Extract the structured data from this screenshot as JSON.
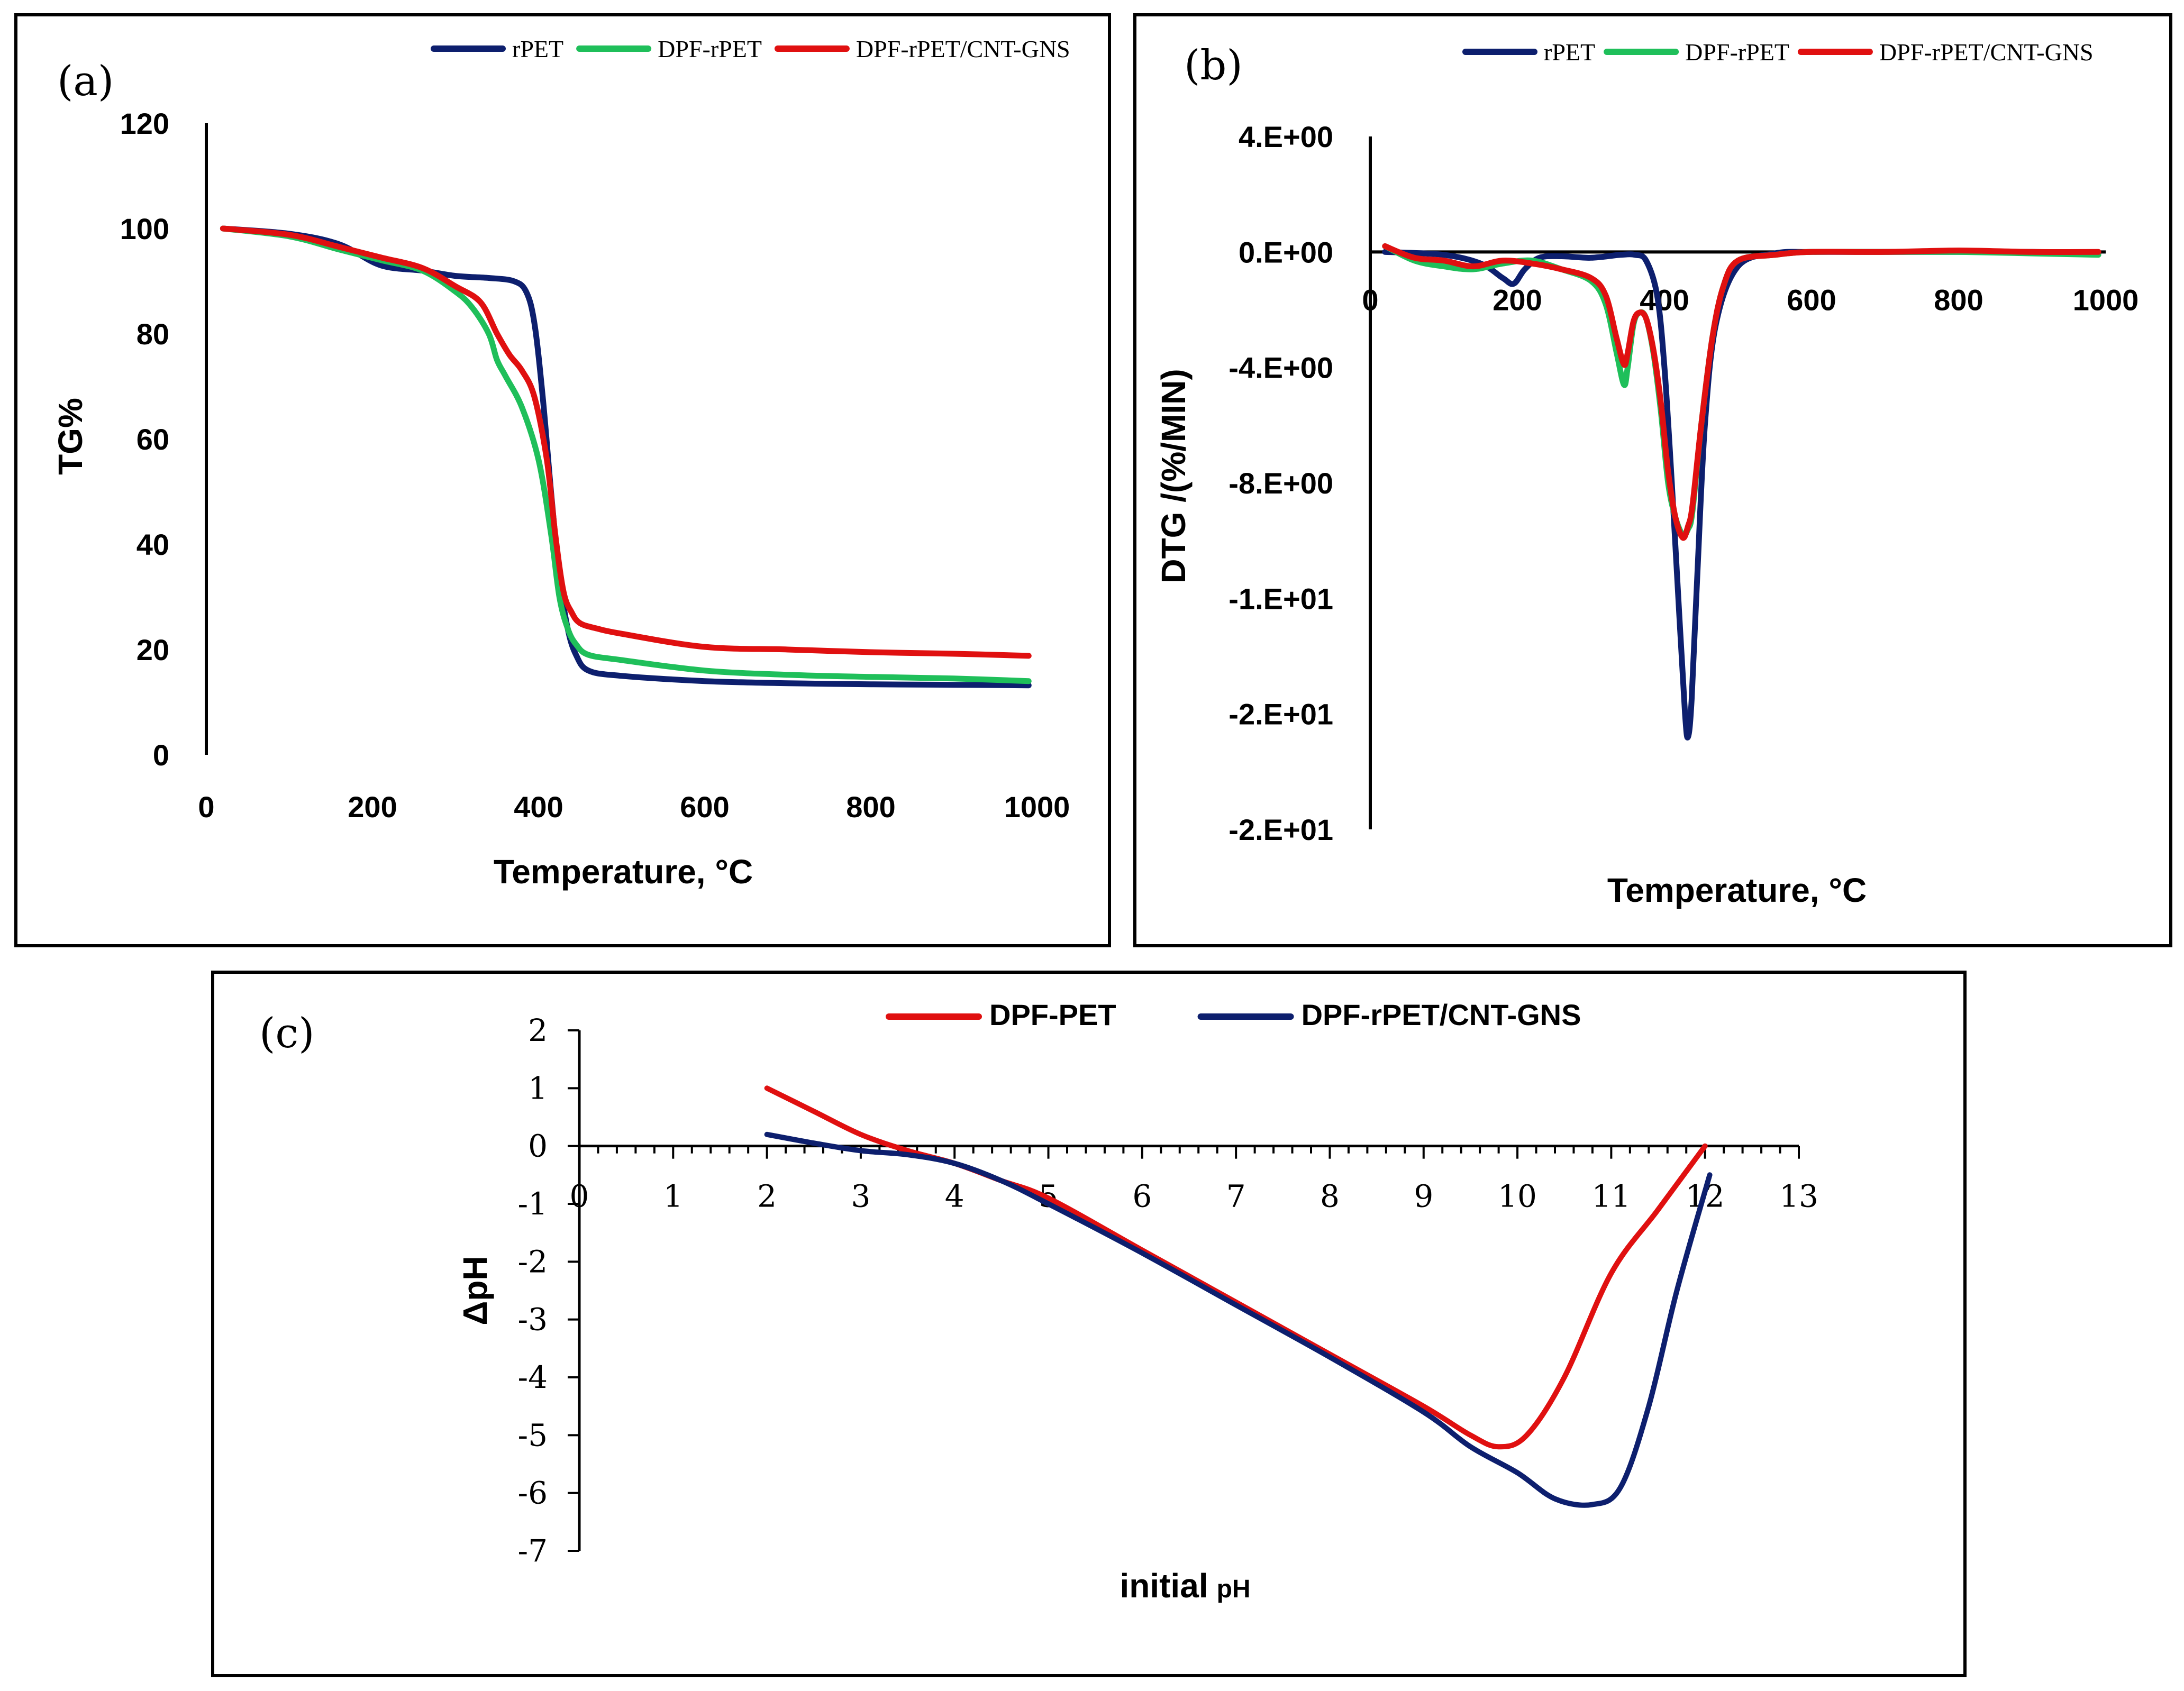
{
  "chart_data": [
    {
      "panel": "(a)",
      "type": "line",
      "xlabel": "Temperature, °C",
      "ylabel": "TG%",
      "xlim": [
        0,
        1000
      ],
      "ylim": [
        0,
        120
      ],
      "xticks": [
        0,
        200,
        400,
        600,
        800,
        1000
      ],
      "yticks": [
        0,
        20,
        40,
        60,
        80,
        100,
        120
      ],
      "legend_position": "top-right",
      "series": [
        {
          "name": "rPET",
          "color": "#0d1f6e",
          "x": [
            20,
            100,
            160,
            210,
            260,
            300,
            340,
            370,
            385,
            395,
            405,
            415,
            425,
            435,
            445,
            460,
            500,
            600,
            700,
            800,
            900,
            990
          ],
          "y": [
            100,
            99,
            97,
            93,
            92,
            91,
            90.6,
            90,
            88,
            82,
            68,
            50,
            34,
            24,
            19,
            16,
            15,
            14,
            13.6,
            13.4,
            13.3,
            13.2
          ]
        },
        {
          "name": "DPF-rPET",
          "color": "#1fbf5a",
          "x": [
            20,
            100,
            160,
            210,
            260,
            300,
            320,
            340,
            350,
            360,
            380,
            400,
            415,
            425,
            435,
            445,
            460,
            500,
            600,
            700,
            800,
            900,
            990
          ],
          "y": [
            100,
            98.5,
            96,
            94,
            92,
            88,
            85,
            80,
            75,
            72,
            66,
            56,
            42,
            30,
            24,
            21,
            19,
            18,
            16,
            15.2,
            14.8,
            14.5,
            14
          ]
        },
        {
          "name": "DPF-rPET/CNT-GNS",
          "color": "#e01010",
          "x": [
            20,
            100,
            160,
            210,
            260,
            300,
            330,
            350,
            365,
            380,
            395,
            410,
            420,
            430,
            440,
            450,
            470,
            500,
            600,
            700,
            800,
            900,
            990
          ],
          "y": [
            100,
            98.8,
            96.5,
            94.5,
            92.5,
            89,
            86,
            80,
            76,
            73,
            68,
            56,
            42,
            31,
            27,
            25,
            24,
            23,
            20.5,
            20,
            19.5,
            19.2,
            18.8
          ]
        }
      ]
    },
    {
      "panel": "(b)",
      "type": "line",
      "xlabel": "Temperature, °C",
      "ylabel": "DTG /(%/MIN)",
      "xlim": [
        0,
        1000
      ],
      "ylim": [
        -20,
        4
      ],
      "xticks": [
        0,
        200,
        400,
        600,
        800,
        1000
      ],
      "xtick_labels": [
        "0",
        "200",
        "400",
        "600",
        "800",
        "1000"
      ],
      "yticks": [
        4,
        0,
        -4,
        -8,
        -12,
        -16,
        -20
      ],
      "ytick_labels": [
        "4.E+00",
        "0.E+00",
        "-4.E+00",
        "-8.E+00",
        "-1.E+01",
        "-2.E+01",
        "-2.E+01"
      ],
      "legend_position": "top-right",
      "series": [
        {
          "name": "rPET",
          "color": "#0d1f6e",
          "x": [
            20,
            100,
            150,
            180,
            195,
            210,
            230,
            260,
            300,
            340,
            360,
            375,
            390,
            400,
            410,
            420,
            428,
            432,
            437,
            445,
            455,
            470,
            500,
            550,
            600,
            700,
            800,
            900,
            990
          ],
          "y": [
            0,
            -0.1,
            -0.4,
            -0.9,
            -1.1,
            -0.6,
            -0.2,
            -0.15,
            -0.2,
            -0.1,
            -0.1,
            -0.3,
            -1.5,
            -4,
            -8,
            -12.5,
            -16,
            -16.8,
            -15.5,
            -11,
            -6,
            -2.5,
            -0.5,
            -0.05,
            0,
            0,
            0,
            0,
            -0.05
          ]
        },
        {
          "name": "DPF-rPET",
          "color": "#1fbf5a",
          "x": [
            20,
            60,
            100,
            140,
            180,
            220,
            260,
            300,
            320,
            335,
            345,
            350,
            358,
            366,
            375,
            385,
            395,
            405,
            415,
            425,
            432,
            438,
            450,
            465,
            480,
            500,
            550,
            600,
            700,
            800,
            900,
            990
          ],
          "y": [
            0.2,
            -0.3,
            -0.5,
            -0.6,
            -0.4,
            -0.3,
            -0.6,
            -1,
            -1.8,
            -3.5,
            -4.6,
            -4.0,
            -2.5,
            -2.1,
            -2.3,
            -3.5,
            -5.5,
            -8,
            -9.2,
            -9.8,
            -9.6,
            -9.0,
            -6,
            -3,
            -1.2,
            -0.3,
            -0.1,
            0,
            0,
            0,
            -0.05,
            -0.1
          ]
        },
        {
          "name": "DPF-rPET/CNT-GNS",
          "color": "#e01010",
          "x": [
            20,
            60,
            100,
            140,
            180,
            220,
            260,
            300,
            320,
            335,
            345,
            350,
            358,
            366,
            375,
            385,
            395,
            405,
            415,
            425,
            432,
            438,
            450,
            465,
            480,
            500,
            550,
            600,
            700,
            800,
            900,
            990
          ],
          "y": [
            0.2,
            -0.2,
            -0.3,
            -0.5,
            -0.3,
            -0.4,
            -0.6,
            -0.9,
            -1.5,
            -3,
            -3.9,
            -3.5,
            -2.4,
            -2.1,
            -2.3,
            -3.4,
            -5.2,
            -7.6,
            -9.2,
            -9.9,
            -9.5,
            -8.8,
            -6,
            -3,
            -1.2,
            -0.3,
            -0.1,
            0,
            0,
            0.05,
            0,
            0
          ]
        }
      ]
    },
    {
      "panel": "(c)",
      "type": "line",
      "xlabel": "initial",
      "xlabel_suffix": "pH",
      "ylabel": "ΔpH",
      "xlim": [
        0,
        13
      ],
      "ylim": [
        -7,
        2
      ],
      "xticks": [
        0,
        1,
        2,
        3,
        4,
        5,
        6,
        7,
        8,
        9,
        10,
        11,
        12,
        13
      ],
      "yticks": [
        2,
        1,
        0,
        -1,
        -2,
        -3,
        -4,
        -5,
        -6,
        -7
      ],
      "legend_position": "top",
      "series": [
        {
          "name": "DPF-PET",
          "color": "#e01010",
          "x": [
            2,
            2.5,
            3,
            3.5,
            4,
            4.5,
            5,
            6,
            7,
            8,
            9,
            9.5,
            9.8,
            10.1,
            10.5,
            11,
            11.5,
            12
          ],
          "y": [
            1,
            0.6,
            0.2,
            -0.08,
            -0.3,
            -0.6,
            -0.9,
            -1.8,
            -2.7,
            -3.6,
            -4.5,
            -5.0,
            -5.2,
            -5.0,
            -4,
            -2.2,
            -1.1,
            0
          ]
        },
        {
          "name": "DPF-rPET/CNT-GNS",
          "color": "#0d1f6e",
          "x": [
            2,
            2.5,
            3,
            3.5,
            4,
            4.5,
            5,
            6,
            7,
            8,
            9,
            9.5,
            10,
            10.4,
            10.8,
            11.1,
            11.4,
            11.7,
            12.05
          ],
          "y": [
            0.2,
            0.05,
            -0.08,
            -0.15,
            -0.3,
            -0.6,
            -1.0,
            -1.85,
            -2.75,
            -3.65,
            -4.6,
            -5.2,
            -5.65,
            -6.1,
            -6.2,
            -5.9,
            -4.5,
            -2.5,
            -0.5
          ]
        }
      ]
    }
  ]
}
